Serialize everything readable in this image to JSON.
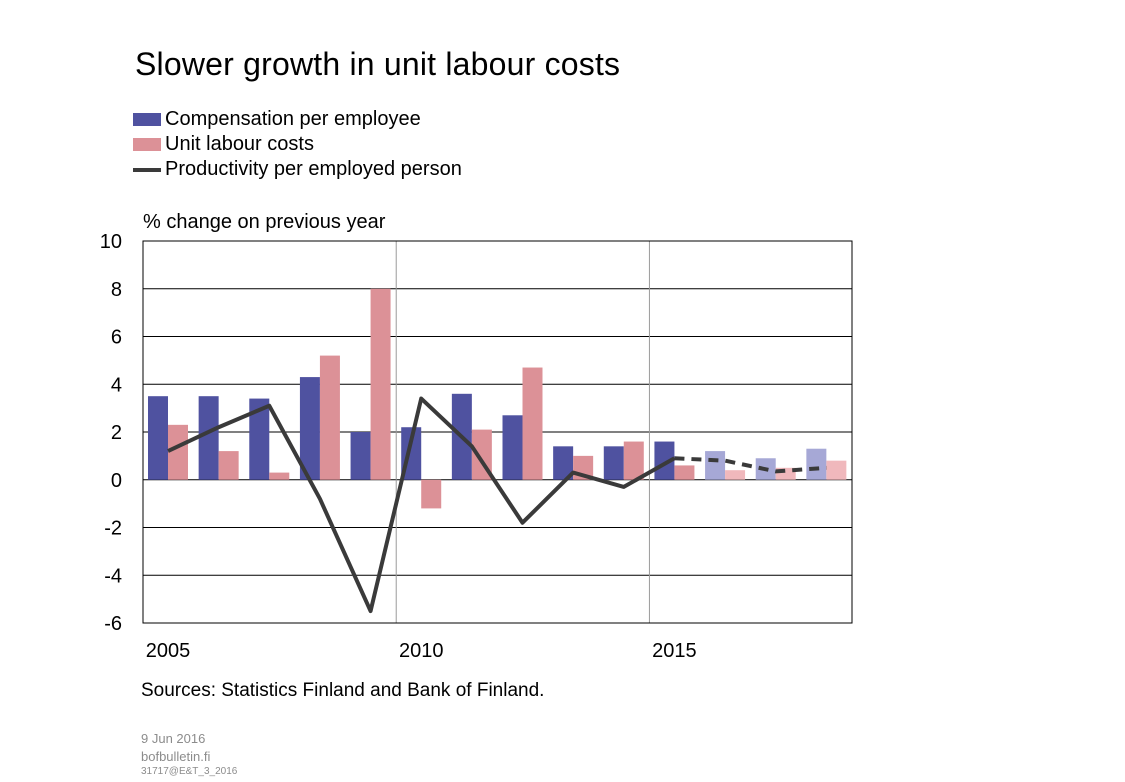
{
  "title": "Slower growth in unit labour costs",
  "legend": [
    {
      "label": "Compensation per employee",
      "color": "#4f52a0",
      "kind": "bar"
    },
    {
      "label": "Unit labour costs",
      "color": "#dc9197",
      "kind": "bar"
    },
    {
      "label": "Productivity per employed person",
      "color": "#3a3a3a",
      "kind": "line"
    }
  ],
  "sources": "Sources: Statistics Finland  and Bank of Finland.",
  "footer": {
    "date": "9 Jun 2016",
    "site": "bofbulletin.fi",
    "code": "31717@E&T_3_2016"
  },
  "chart_data": {
    "type": "bar",
    "ylabel": "% change  on previous year",
    "xlabel": "",
    "ylim": [
      -6,
      10
    ],
    "yticks": [
      10,
      8,
      6,
      4,
      2,
      0,
      -2,
      -4,
      -6
    ],
    "x": [
      2005,
      2006,
      2007,
      2008,
      2009,
      2010,
      2011,
      2012,
      2013,
      2014,
      2015,
      2016,
      2017,
      2018
    ],
    "xtick_labels": [
      {
        "x": 2005,
        "label": "2005"
      },
      {
        "x": 2010,
        "label": "2010"
      },
      {
        "x": 2015,
        "label": "2015"
      }
    ],
    "forecast_from": 2016,
    "grid": "horizontal",
    "series": [
      {
        "name": "Compensation per employee",
        "type": "bar",
        "color": "#4f52a0",
        "forecast_color": "#a6a8d6",
        "values": [
          3.5,
          3.5,
          3.4,
          4.3,
          2.0,
          2.2,
          3.6,
          2.7,
          1.4,
          1.4,
          1.6,
          1.2,
          0.9,
          1.3
        ]
      },
      {
        "name": "Unit labour costs",
        "type": "bar",
        "color": "#dc9197",
        "forecast_color": "#f0b8bc",
        "values": [
          2.3,
          1.2,
          0.3,
          5.2,
          8.0,
          -1.2,
          2.1,
          4.7,
          1.0,
          1.6,
          0.6,
          0.4,
          0.5,
          0.8
        ]
      },
      {
        "name": "Productivity per employed person",
        "type": "line",
        "color": "#3a3a3a",
        "values": [
          1.2,
          2.2,
          3.1,
          -0.8,
          -5.5,
          3.4,
          1.4,
          -1.8,
          0.3,
          -0.3,
          0.9,
          0.8,
          0.35,
          0.5
        ]
      }
    ],
    "vertical_grid_at": [
      2009.5,
      2014.5
    ]
  }
}
